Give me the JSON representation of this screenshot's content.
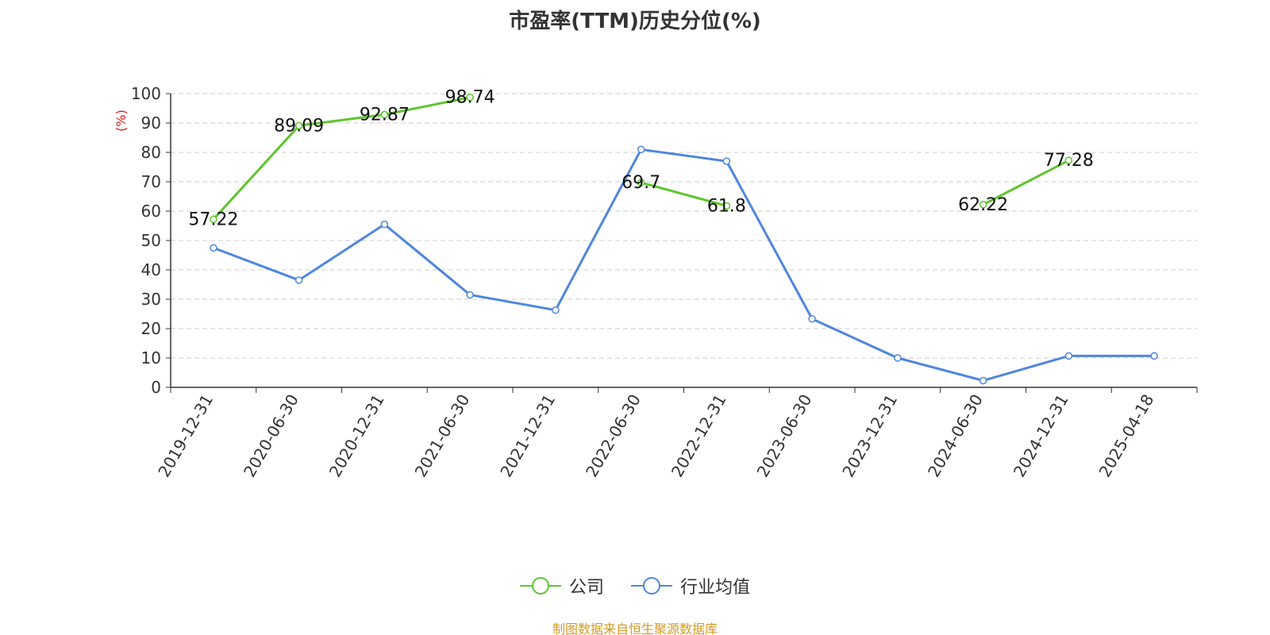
{
  "colors": {
    "company": "#5cc62c",
    "industry": "#4f86de",
    "axis_unit": "#e0191b",
    "source": "#d49a1e"
  },
  "source_note": "制图数据来自恒生聚源数据库",
  "chart_data": {
    "type": "line",
    "title": "市盈率(TTM)历史分位(%)",
    "ylabel": "(%)",
    "ylim": [
      0,
      100
    ],
    "yticks": [
      0,
      10,
      20,
      30,
      40,
      50,
      60,
      70,
      80,
      90,
      100
    ],
    "grid": true,
    "legend_position": "bottom",
    "categories": [
      "2019-12-31",
      "2020-06-30",
      "2020-12-31",
      "2021-06-30",
      "2021-12-31",
      "2022-06-30",
      "2022-12-31",
      "2023-06-30",
      "2023-12-31",
      "2024-06-30",
      "2024-12-31",
      "2025-04-18"
    ],
    "series": [
      {
        "name": "公司",
        "color": "#5cc62c",
        "values": [
          57.22,
          89.09,
          92.87,
          98.74,
          null,
          69.7,
          61.8,
          null,
          null,
          62.22,
          77.28,
          null
        ],
        "labels": [
          "57.22",
          "89.09",
          "92.87",
          "98.74",
          null,
          "69.7",
          "61.8",
          null,
          null,
          "62.22",
          "77.28",
          null
        ]
      },
      {
        "name": "行业均值",
        "color": "#4f86de",
        "values": [
          47.5,
          36.5,
          55.5,
          31.5,
          26.3,
          81.0,
          77.0,
          23.3,
          10.0,
          2.3,
          10.7,
          10.7
        ]
      }
    ]
  }
}
